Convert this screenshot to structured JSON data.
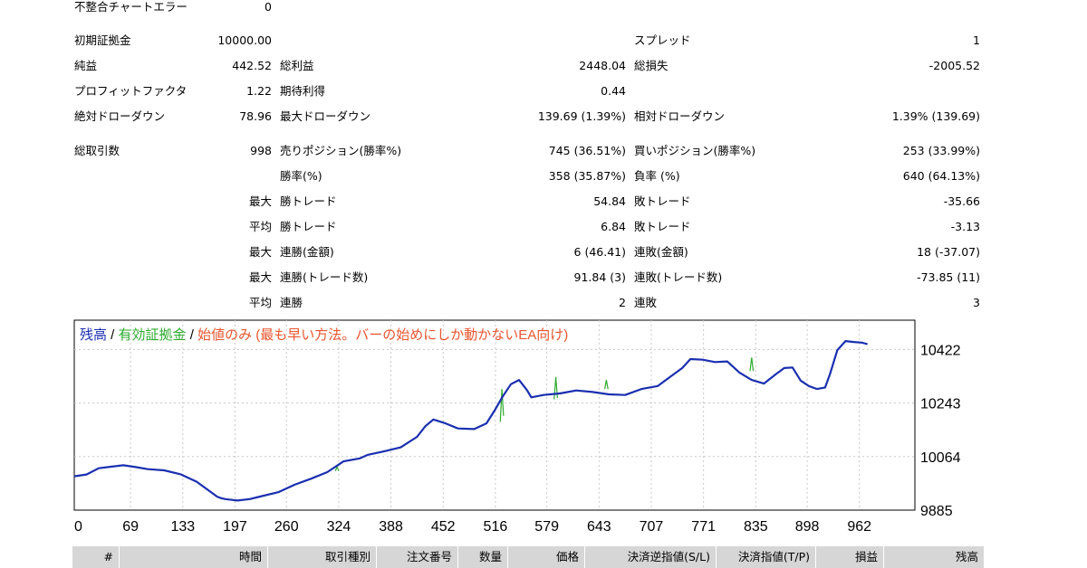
{
  "stats": {
    "mismatch_error_label": "不整合チャートエラー",
    "mismatch_error_value": "0",
    "initial_deposit_label": "初期証拠金",
    "initial_deposit_value": "10000.00",
    "spread_label": "スプレッド",
    "spread_value": "1",
    "net_profit_label": "純益",
    "net_profit_value": "442.52",
    "gross_profit_label": "総利益",
    "gross_profit_value": "2448.04",
    "gross_loss_label": "総損失",
    "gross_loss_value": "-2005.52",
    "profit_factor_label": "プロフィットファクタ",
    "profit_factor_value": "1.22",
    "expected_payoff_label": "期待利得",
    "expected_payoff_value": "0.44",
    "abs_drawdown_label": "絶対ドローダウン",
    "abs_drawdown_value": "78.96",
    "max_drawdown_label": "最大ドローダウン",
    "max_drawdown_value": "139.69 (1.39%)",
    "rel_drawdown_label": "相対ドローダウン",
    "rel_drawdown_value": "1.39% (139.69)",
    "total_trades_label": "総取引数",
    "total_trades_value": "998",
    "short_pos_label": "売りポジション(勝率%)",
    "short_pos_value": "745 (36.51%)",
    "long_pos_label": "買いポジション(勝率%)",
    "long_pos_value": "253 (33.99%)",
    "win_rate_label": "勝率(%)",
    "win_rate_value": "358 (35.87%)",
    "loss_rate_label": "負率 (%)",
    "loss_rate_value": "640 (64.13%)",
    "rows": [
      {
        "prefix": "最大",
        "left_label": "勝トレード",
        "left_value": "54.84",
        "right_label": "敗トレード",
        "right_value": "-35.66"
      },
      {
        "prefix": "平均",
        "left_label": "勝トレード",
        "left_value": "6.84",
        "right_label": "敗トレード",
        "right_value": "-3.13"
      },
      {
        "prefix": "最大",
        "left_label": "連勝(金額)",
        "left_value": "6 (46.41)",
        "right_label": "連敗(金額)",
        "right_value": "18 (-37.07)"
      },
      {
        "prefix": "最大",
        "left_label": "連勝(トレード数)",
        "left_value": "91.84 (3)",
        "right_label": "連敗(トレード数)",
        "right_value": "-73.85 (11)"
      },
      {
        "prefix": "平均",
        "left_label": "連勝",
        "left_value": "2",
        "right_label": "連敗",
        "right_value": "3"
      }
    ]
  },
  "chart_data": {
    "type": "line",
    "legend": {
      "balance": "残高",
      "separator": " / ",
      "equity": "有効証拠金",
      "note": "始値のみ (最も早い方法。バーの始めにしか動かないEA向け)"
    },
    "colors": {
      "balance": "#1a2fb0",
      "equity": "#2eaa2e",
      "note": "#e8552e",
      "grid": "#c8c8c8"
    },
    "x_ticks": [
      0,
      69,
      133,
      197,
      260,
      324,
      388,
      452,
      516,
      579,
      643,
      707,
      771,
      835,
      898,
      962
    ],
    "y_ticks": [
      9885,
      10064,
      10243,
      10422
    ],
    "xlim": [
      0,
      1030
    ],
    "ylim": [
      9885,
      10520
    ],
    "grid": true,
    "series": [
      {
        "name": "残高",
        "points": [
          [
            0,
            9998
          ],
          [
            15,
            10004
          ],
          [
            30,
            10025
          ],
          [
            45,
            10030
          ],
          [
            60,
            10035
          ],
          [
            75,
            10029
          ],
          [
            90,
            10022
          ],
          [
            110,
            10018
          ],
          [
            130,
            10005
          ],
          [
            150,
            9980
          ],
          [
            165,
            9950
          ],
          [
            175,
            9930
          ],
          [
            180,
            9925
          ],
          [
            185,
            9922
          ],
          [
            200,
            9917
          ],
          [
            215,
            9922
          ],
          [
            230,
            9932
          ],
          [
            250,
            9945
          ],
          [
            270,
            9970
          ],
          [
            290,
            9990
          ],
          [
            310,
            10012
          ],
          [
            330,
            10048
          ],
          [
            350,
            10058
          ],
          [
            360,
            10070
          ],
          [
            380,
            10082
          ],
          [
            400,
            10095
          ],
          [
            420,
            10130
          ],
          [
            430,
            10165
          ],
          [
            440,
            10188
          ],
          [
            455,
            10175
          ],
          [
            470,
            10158
          ],
          [
            490,
            10156
          ],
          [
            505,
            10175
          ],
          [
            515,
            10218
          ],
          [
            525,
            10265
          ],
          [
            535,
            10306
          ],
          [
            545,
            10320
          ],
          [
            555,
            10285
          ],
          [
            560,
            10262
          ],
          [
            575,
            10270
          ],
          [
            595,
            10275
          ],
          [
            615,
            10285
          ],
          [
            635,
            10280
          ],
          [
            655,
            10272
          ],
          [
            675,
            10270
          ],
          [
            695,
            10290
          ],
          [
            715,
            10300
          ],
          [
            730,
            10330
          ],
          [
            745,
            10360
          ],
          [
            755,
            10390
          ],
          [
            770,
            10388
          ],
          [
            785,
            10380
          ],
          [
            800,
            10382
          ],
          [
            815,
            10345
          ],
          [
            830,
            10320
          ],
          [
            845,
            10308
          ],
          [
            860,
            10340
          ],
          [
            870,
            10360
          ],
          [
            880,
            10362
          ],
          [
            890,
            10318
          ],
          [
            900,
            10300
          ],
          [
            910,
            10290
          ],
          [
            920,
            10295
          ],
          [
            926,
            10340
          ],
          [
            935,
            10420
          ],
          [
            945,
            10450
          ],
          [
            955,
            10447
          ],
          [
            965,
            10445
          ],
          [
            972,
            10440
          ]
        ]
      },
      {
        "name": "有効証拠金",
        "points": [
          [
            320,
            10016
          ],
          [
            322,
            10030
          ],
          [
            324,
            10016
          ],
          [
            522,
            10180
          ],
          [
            524,
            10290
          ],
          [
            526,
            10200
          ],
          [
            588,
            10255
          ],
          [
            590,
            10330
          ],
          [
            592,
            10260
          ],
          [
            650,
            10290
          ],
          [
            652,
            10320
          ],
          [
            654,
            10290
          ],
          [
            828,
            10350
          ],
          [
            830,
            10395
          ],
          [
            832,
            10350
          ]
        ]
      }
    ]
  },
  "table_header": {
    "columns": [
      "#",
      "時間",
      "取引種別",
      "注文番号",
      "数量",
      "価格",
      "決済逆指値(S/L)",
      "決済指値(T/P)",
      "損益",
      "残高"
    ]
  }
}
